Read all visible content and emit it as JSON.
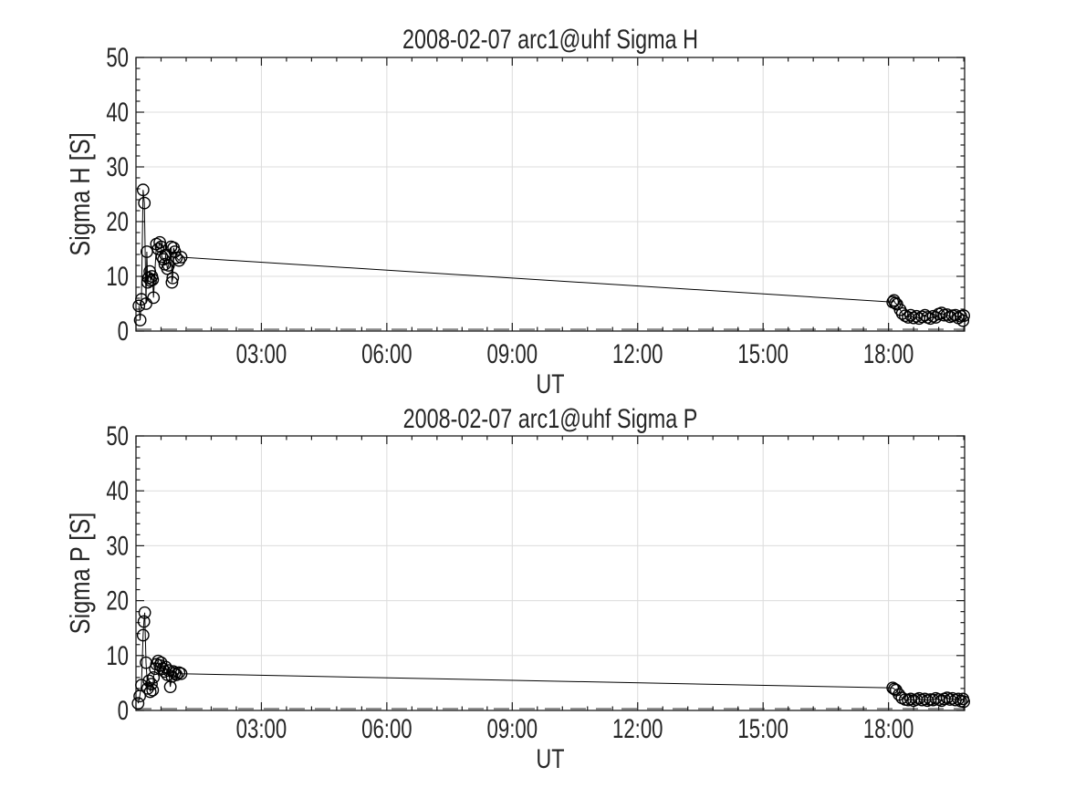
{
  "style": {
    "background": "#ffffff",
    "axis_color": "#1a1a1a",
    "text_color": "#262626",
    "grid_color": "#dcdcdc",
    "line_color": "#000000",
    "marker_color": "#000000",
    "mask_line_color": "#8c8c8c"
  },
  "chart_data": [
    {
      "type": "line",
      "title": "2008-02-07  arc1@uhf Sigma H",
      "xlabel": "UT",
      "ylabel": "Sigma H [S]",
      "xlim_hours": [
        0,
        19.82
      ],
      "ylim": [
        0,
        50
      ],
      "grid": true,
      "legend_position": "none",
      "marker": "open-circle",
      "x_ticks": [
        {
          "hour": 3,
          "label": "03:00"
        },
        {
          "hour": 6,
          "label": "06:00"
        },
        {
          "hour": 9,
          "label": "09:00"
        },
        {
          "hour": 12,
          "label": "12:00"
        },
        {
          "hour": 15,
          "label": "15:00"
        },
        {
          "hour": 18,
          "label": "18:00"
        }
      ],
      "y_ticks": [
        0,
        10,
        20,
        30,
        40,
        50
      ],
      "zero_mask_line": {
        "y": 0.3,
        "style": "dashed"
      },
      "series": [
        {
          "name": "Sigma H",
          "points": [
            [
              0.07,
              4.6
            ],
            [
              0.1,
              2.0
            ],
            [
              0.13,
              5.8
            ],
            [
              0.17,
              25.8
            ],
            [
              0.2,
              23.4
            ],
            [
              0.24,
              5.0
            ],
            [
              0.26,
              14.5
            ],
            [
              0.28,
              8.9
            ],
            [
              0.3,
              9.7
            ],
            [
              0.33,
              10.9
            ],
            [
              0.35,
              9.2
            ],
            [
              0.38,
              10.0
            ],
            [
              0.4,
              9.4
            ],
            [
              0.42,
              6.1
            ],
            [
              0.49,
              15.9
            ],
            [
              0.53,
              15.0
            ],
            [
              0.57,
              16.2
            ],
            [
              0.6,
              15.4
            ],
            [
              0.62,
              13.6
            ],
            [
              0.66,
              13.1
            ],
            [
              0.69,
              12.2
            ],
            [
              0.71,
              13.9
            ],
            [
              0.75,
              11.4
            ],
            [
              0.78,
              12.0
            ],
            [
              0.84,
              15.4
            ],
            [
              0.86,
              8.9
            ],
            [
              0.88,
              9.7
            ],
            [
              0.9,
              15.2
            ],
            [
              0.93,
              14.5
            ],
            [
              0.97,
              13.4
            ],
            [
              1.03,
              12.9
            ],
            [
              1.08,
              13.5
            ],
            [
              18.1,
              5.3
            ],
            [
              18.13,
              5.6
            ],
            [
              18.16,
              5.1
            ],
            [
              18.2,
              4.9
            ],
            [
              18.28,
              3.9
            ],
            [
              18.33,
              3.2
            ],
            [
              18.4,
              2.8
            ],
            [
              18.47,
              2.5
            ],
            [
              18.53,
              2.9
            ],
            [
              18.6,
              2.4
            ],
            [
              18.67,
              2.7
            ],
            [
              18.73,
              2.3
            ],
            [
              18.8,
              2.6
            ],
            [
              18.87,
              2.9
            ],
            [
              18.93,
              2.5
            ],
            [
              19.0,
              2.3
            ],
            [
              19.07,
              2.7
            ],
            [
              19.13,
              2.5
            ],
            [
              19.2,
              3.1
            ],
            [
              19.27,
              3.3
            ],
            [
              19.33,
              2.9
            ],
            [
              19.4,
              3.0
            ],
            [
              19.47,
              2.6
            ],
            [
              19.53,
              2.8
            ],
            [
              19.6,
              2.9
            ],
            [
              19.67,
              2.4
            ],
            [
              19.73,
              2.7
            ],
            [
              19.78,
              1.9
            ],
            [
              19.8,
              2.8
            ]
          ]
        }
      ]
    },
    {
      "type": "line",
      "title": "2008-02-07  arc1@uhf Sigma P",
      "xlabel": "UT",
      "ylabel": "Sigma P [S]",
      "xlim_hours": [
        0,
        19.82
      ],
      "ylim": [
        0,
        50
      ],
      "grid": true,
      "legend_position": "none",
      "marker": "open-circle",
      "x_ticks": [
        {
          "hour": 3,
          "label": "03:00"
        },
        {
          "hour": 6,
          "label": "06:00"
        },
        {
          "hour": 9,
          "label": "09:00"
        },
        {
          "hour": 12,
          "label": "12:00"
        },
        {
          "hour": 15,
          "label": "15:00"
        },
        {
          "hour": 18,
          "label": "18:00"
        }
      ],
      "y_ticks": [
        0,
        10,
        20,
        30,
        40,
        50
      ],
      "zero_mask_line": {
        "y": 0.3,
        "style": "dashed"
      },
      "series": [
        {
          "name": "Sigma P",
          "points": [
            [
              0.05,
              1.3
            ],
            [
              0.09,
              2.6
            ],
            [
              0.13,
              4.6
            ],
            [
              0.17,
              13.7
            ],
            [
              0.19,
              16.2
            ],
            [
              0.21,
              17.8
            ],
            [
              0.24,
              8.7
            ],
            [
              0.28,
              4.0
            ],
            [
              0.31,
              5.4
            ],
            [
              0.34,
              3.4
            ],
            [
              0.37,
              4.8
            ],
            [
              0.4,
              3.7
            ],
            [
              0.42,
              6.0
            ],
            [
              0.46,
              7.6
            ],
            [
              0.49,
              8.4
            ],
            [
              0.53,
              9.0
            ],
            [
              0.57,
              8.2
            ],
            [
              0.6,
              8.7
            ],
            [
              0.64,
              7.6
            ],
            [
              0.68,
              7.1
            ],
            [
              0.71,
              7.9
            ],
            [
              0.75,
              6.5
            ],
            [
              0.78,
              7.3
            ],
            [
              0.82,
              4.3
            ],
            [
              0.86,
              6.2
            ],
            [
              0.89,
              7.1
            ],
            [
              0.93,
              6.8
            ],
            [
              0.97,
              6.5
            ],
            [
              1.03,
              6.9
            ],
            [
              1.08,
              6.7
            ],
            [
              18.1,
              4.1
            ],
            [
              18.14,
              3.9
            ],
            [
              18.18,
              3.7
            ],
            [
              18.25,
              2.9
            ],
            [
              18.32,
              2.3
            ],
            [
              18.4,
              2.0
            ],
            [
              18.47,
              1.9
            ],
            [
              18.53,
              2.1
            ],
            [
              18.6,
              1.8
            ],
            [
              18.67,
              2.0
            ],
            [
              18.73,
              2.2
            ],
            [
              18.8,
              1.9
            ],
            [
              18.87,
              2.1
            ],
            [
              18.93,
              1.8
            ],
            [
              19.0,
              2.0
            ],
            [
              19.07,
              1.9
            ],
            [
              19.13,
              2.2
            ],
            [
              19.2,
              2.0
            ],
            [
              19.27,
              1.8
            ],
            [
              19.33,
              2.1
            ],
            [
              19.4,
              2.3
            ],
            [
              19.47,
              2.0
            ],
            [
              19.53,
              2.2
            ],
            [
              19.6,
              1.9
            ],
            [
              19.67,
              2.1
            ],
            [
              19.73,
              1.7
            ],
            [
              19.78,
              2.1
            ],
            [
              19.8,
              1.6
            ]
          ]
        }
      ]
    }
  ]
}
